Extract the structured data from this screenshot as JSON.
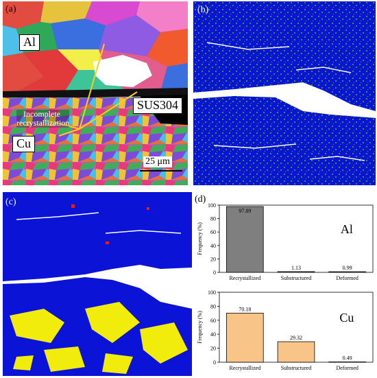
{
  "panels": {
    "a": {
      "label": "(a)",
      "labels": {
        "al": "Al",
        "cu": "Cu",
        "sus": "SUS304",
        "incomplete_line1": "Incomplete",
        "incomplete_line2": "recrystallization",
        "scale": "25 μm"
      }
    },
    "b": {
      "label": "(b)"
    },
    "c": {
      "label": "(c)"
    },
    "d": {
      "label": "(d)"
    }
  },
  "colors": {
    "map_blue": "#0a13d6",
    "map_green": "#2e9a3a",
    "map_yellow": "#f2ec0c",
    "map_red": "#e0201c",
    "bar_al": "#7f7f7f",
    "bar_cu": "#f8c488"
  },
  "chart_data": [
    {
      "type": "bar",
      "categories": [
        "Recrystallized",
        "Substructured",
        "Deformed"
      ],
      "values": [
        97.89,
        1.13,
        0.99
      ],
      "value_labels": [
        "97.89",
        "1.13",
        "0.99"
      ],
      "ylabel": "Frequency (%)",
      "ylim": [
        0,
        100
      ],
      "yticks": [
        0,
        20,
        40,
        60,
        80,
        100
      ],
      "annotation": "Al",
      "color": "#7f7f7f"
    },
    {
      "type": "bar",
      "categories": [
        "Recrystallized",
        "Substructured",
        "Deformed"
      ],
      "values": [
        70.18,
        29.32,
        0.49
      ],
      "value_labels": [
        "70.18",
        "29.32",
        "0.49"
      ],
      "ylabel": "Frequency (%)",
      "ylim": [
        0,
        100
      ],
      "yticks": [
        0,
        20,
        40,
        60,
        80,
        100
      ],
      "annotation": "Cu",
      "color": "#f8c488"
    }
  ]
}
